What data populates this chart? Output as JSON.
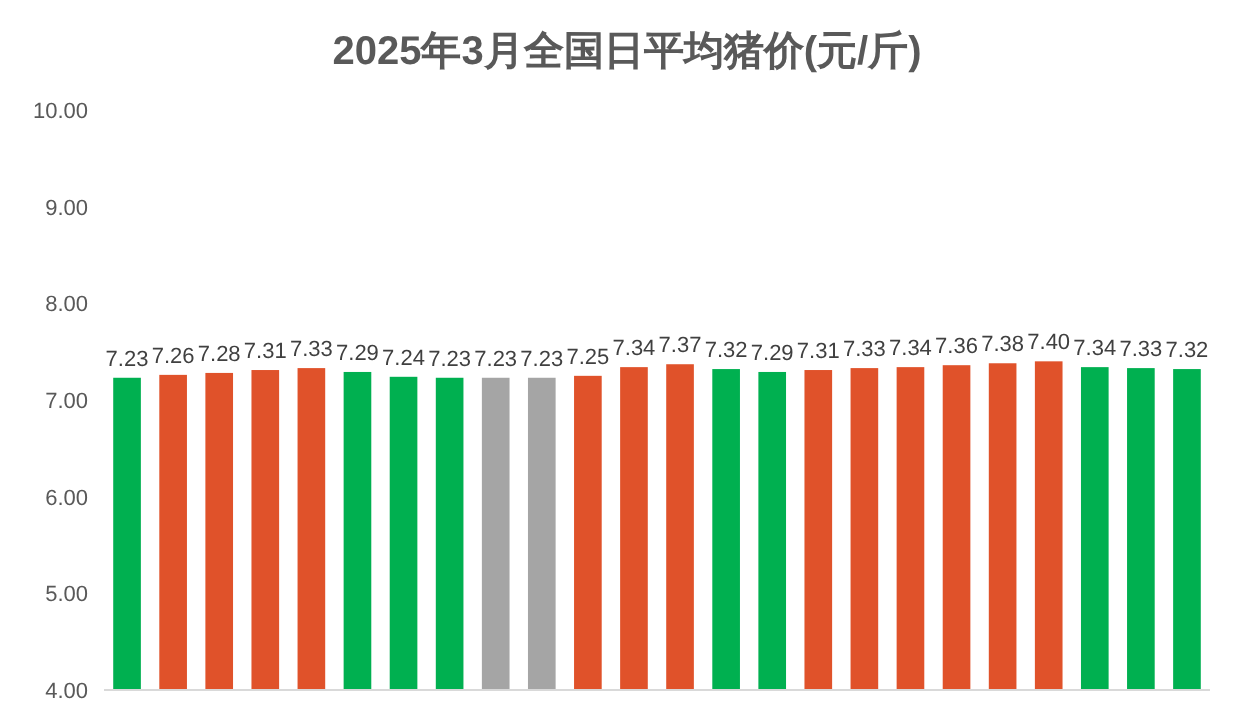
{
  "chart_data": {
    "type": "bar",
    "title": "2025年3月全国日平均猪价(元/斤)",
    "categories": [
      null,
      null,
      null,
      null,
      null,
      null,
      null,
      null,
      null,
      null,
      null,
      null,
      null,
      null,
      null,
      null,
      null,
      null,
      null,
      null,
      null,
      null,
      null,
      null
    ],
    "values": [
      7.23,
      7.26,
      7.28,
      7.31,
      7.33,
      7.29,
      7.24,
      7.23,
      7.23,
      7.23,
      7.25,
      7.34,
      7.37,
      7.32,
      7.29,
      7.31,
      7.33,
      7.34,
      7.36,
      7.38,
      7.4,
      7.34,
      7.33,
      7.32
    ],
    "value_labels": [
      "7.23",
      "7.26",
      "7.28",
      "7.31",
      "7.33",
      "7.29",
      "7.24",
      "7.23",
      "7.23",
      "7.23",
      "7.25",
      "7.34",
      "7.37",
      "7.32",
      "7.29",
      "7.31",
      "7.33",
      "7.34",
      "7.36",
      "7.38",
      "7.40",
      "7.34",
      "7.33",
      "7.32"
    ],
    "colors": [
      "#00b050",
      "#e0522a",
      "#e0522a",
      "#e0522a",
      "#e0522a",
      "#00b050",
      "#00b050",
      "#00b050",
      "#a5a5a5",
      "#a5a5a5",
      "#e0522a",
      "#e0522a",
      "#e0522a",
      "#00b050",
      "#00b050",
      "#e0522a",
      "#e0522a",
      "#e0522a",
      "#e0522a",
      "#e0522a",
      "#e0522a",
      "#00b050",
      "#00b050",
      "#00b050"
    ],
    "ylim": [
      4,
      10
    ],
    "yticks": [
      {
        "value": 4,
        "label": "4.00"
      },
      {
        "value": 5,
        "label": "5.00"
      },
      {
        "value": 6,
        "label": "6.00"
      },
      {
        "value": 7,
        "label": "7.00"
      },
      {
        "value": 8,
        "label": "8.00"
      },
      {
        "value": 9,
        "label": "9.00"
      },
      {
        "value": 10,
        "label": "10.00"
      }
    ],
    "grid": false
  }
}
